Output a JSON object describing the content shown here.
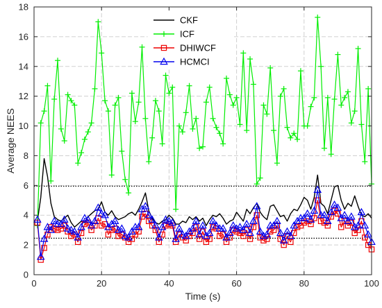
{
  "chart_data": {
    "type": "line",
    "xlabel": "Time (s)",
    "ylabel": "Average NEES",
    "xlim": [
      0,
      100
    ],
    "ylim": [
      0,
      18
    ],
    "xticks": [
      "0",
      "20",
      "40",
      "60",
      "80",
      "100"
    ],
    "yticks": [
      "0",
      "2",
      "4",
      "6",
      "8",
      "10",
      "12",
      "14",
      "16",
      "18"
    ],
    "grid": true,
    "legend_position": "top-center",
    "reference_lines": [
      2.45,
      5.95
    ],
    "x": [
      1,
      2,
      3,
      4,
      5,
      6,
      7,
      8,
      9,
      10,
      11,
      12,
      13,
      14,
      15,
      16,
      17,
      18,
      19,
      20,
      21,
      22,
      23,
      24,
      25,
      26,
      27,
      28,
      29,
      30,
      31,
      32,
      33,
      34,
      35,
      36,
      37,
      38,
      39,
      40,
      41,
      42,
      43,
      44,
      45,
      46,
      47,
      48,
      49,
      50,
      51,
      52,
      53,
      54,
      55,
      56,
      57,
      58,
      59,
      60,
      61,
      62,
      63,
      64,
      65,
      66,
      67,
      68,
      69,
      70,
      71,
      72,
      73,
      74,
      75,
      76,
      77,
      78,
      79,
      80,
      81,
      82,
      83,
      84,
      85,
      86,
      87,
      88,
      89,
      90,
      91,
      92,
      93,
      94,
      95,
      96,
      97,
      98,
      99,
      100
    ],
    "series": [
      {
        "name": "CKF",
        "color": "#000000",
        "marker": "none",
        "values": [
          3.6,
          5.2,
          7.8,
          6.6,
          4.8,
          3.9,
          3.7,
          3.6,
          3.8,
          4.0,
          3.5,
          3.2,
          3.4,
          3.6,
          3.5,
          3.9,
          4.1,
          4.3,
          4.4,
          4.9,
          4.2,
          4.0,
          4.3,
          3.9,
          3.7,
          3.8,
          3.9,
          4.1,
          4.2,
          4.0,
          4.4,
          4.9,
          5.5,
          4.3,
          3.8,
          3.5,
          3.4,
          3.6,
          3.7,
          4.0,
          3.8,
          3.4,
          3.4,
          3.6,
          3.5,
          3.9,
          3.7,
          3.9,
          3.6,
          3.8,
          3.3,
          3.7,
          4.0,
          3.9,
          4.1,
          3.8,
          3.4,
          3.6,
          3.7,
          4.2,
          3.9,
          3.6,
          4.4,
          4.1,
          4.5,
          4.8,
          4.2,
          3.9,
          3.7,
          4.6,
          4.7,
          4.3,
          3.9,
          4.0,
          3.6,
          4.1,
          4.4,
          4.3,
          4.7,
          5.2,
          5.0,
          4.4,
          5.2,
          6.7,
          4.8,
          4.6,
          4.1,
          5.0,
          5.9,
          6.0,
          5.0,
          4.4,
          4.8,
          4.6,
          5.3,
          4.6,
          4.0,
          3.9,
          4.1,
          3.8
        ]
      },
      {
        "name": "ICF",
        "color": "#00ee00",
        "marker": "plus",
        "values": [
          3.3,
          10.2,
          11.0,
          12.7,
          6.3,
          11.8,
          14.4,
          9.8,
          9.0,
          12.1,
          11.7,
          11.4,
          7.5,
          8.2,
          9.1,
          9.6,
          10.2,
          12.5,
          17.0,
          14.9,
          11.7,
          11.0,
          6.7,
          11.4,
          11.9,
          8.3,
          6.4,
          5.5,
          12.2,
          10.3,
          11.6,
          15.3,
          10.5,
          7.6,
          9.2,
          11.7,
          11.0,
          8.8,
          13.4,
          12.2,
          12.6,
          4.4,
          10.0,
          9.6,
          10.9,
          12.7,
          9.8,
          10.5,
          8.5,
          8.6,
          11.6,
          12.6,
          10.5,
          9.9,
          9.5,
          8.8,
          13.2,
          12.1,
          11.4,
          11.9,
          10.1,
          14.9,
          9.7,
          14.5,
          12.8,
          6.1,
          6.5,
          11.4,
          10.8,
          13.9,
          9.7,
          7.5,
          12.0,
          12.5,
          9.9,
          9.2,
          9.5,
          9.1,
          13.7,
          10.0,
          10.0,
          11.3,
          11.9,
          17.3,
          14.0,
          8.5,
          11.9,
          8.1,
          11.8,
          14.8,
          11.4,
          11.9,
          12.3,
          10.2,
          11.0,
          15.2,
          10.1,
          7.6,
          12.5,
          6.1
        ]
      },
      {
        "name": "DHIWCF",
        "color": "#ee0000",
        "marker": "square",
        "values": [
          3.5,
          1.0,
          1.8,
          2.7,
          3.2,
          3.1,
          3.0,
          3.1,
          3.3,
          2.9,
          2.6,
          2.7,
          2.2,
          2.8,
          3.4,
          3.5,
          3.0,
          3.3,
          3.8,
          3.3,
          3.4,
          2.7,
          3.0,
          3.1,
          2.6,
          2.7,
          2.5,
          2.2,
          2.4,
          2.7,
          2.9,
          3.9,
          4.1,
          3.6,
          3.3,
          3.0,
          2.2,
          2.7,
          3.3,
          3.4,
          3.3,
          2.2,
          2.7,
          2.5,
          2.3,
          2.6,
          2.8,
          3.2,
          2.4,
          2.9,
          2.2,
          2.4,
          3.2,
          3.1,
          2.6,
          2.7,
          2.2,
          2.5,
          3.0,
          2.9,
          2.8,
          2.6,
          3.0,
          2.4,
          3.2,
          4.0,
          2.5,
          2.3,
          2.4,
          2.9,
          3.0,
          3.3,
          2.4,
          2.0,
          2.6,
          2.2,
          2.8,
          3.2,
          3.3,
          3.5,
          3.6,
          3.4,
          3.8,
          5.0,
          3.6,
          3.5,
          3.3,
          3.9,
          4.3,
          4.1,
          3.2,
          3.6,
          3.3,
          3.5,
          2.8,
          3.0,
          3.6,
          2.5,
          2.0,
          1.7
        ]
      },
      {
        "name": "HCMCI",
        "color": "#0000ee",
        "marker": "triangle",
        "values": [
          3.7,
          1.2,
          2.4,
          3.2,
          3.0,
          3.6,
          3.4,
          3.4,
          3.7,
          3.1,
          3.0,
          2.9,
          2.5,
          3.2,
          3.8,
          3.7,
          3.3,
          3.6,
          4.5,
          4.1,
          4.0,
          3.2,
          3.4,
          3.6,
          3.0,
          3.1,
          2.6,
          2.5,
          2.9,
          3.2,
          3.2,
          4.4,
          4.6,
          4.0,
          3.7,
          3.3,
          2.5,
          3.2,
          3.7,
          3.6,
          3.5,
          2.4,
          3.1,
          2.7,
          2.6,
          2.9,
          3.1,
          3.6,
          2.7,
          3.3,
          2.6,
          2.8,
          3.6,
          3.3,
          3.1,
          3.1,
          2.5,
          2.8,
          3.3,
          3.1,
          3.2,
          3.0,
          3.4,
          2.8,
          3.6,
          4.6,
          2.9,
          2.6,
          2.7,
          3.3,
          3.3,
          3.6,
          2.8,
          2.3,
          2.9,
          2.6,
          3.3,
          3.6,
          3.8,
          3.8,
          4.1,
          3.7,
          4.3,
          5.7,
          4.0,
          4.0,
          3.6,
          4.2,
          4.7,
          4.5,
          3.8,
          4.0,
          3.6,
          3.9,
          3.2,
          3.3,
          4.2,
          3.3,
          2.7,
          2.2
        ]
      }
    ]
  }
}
